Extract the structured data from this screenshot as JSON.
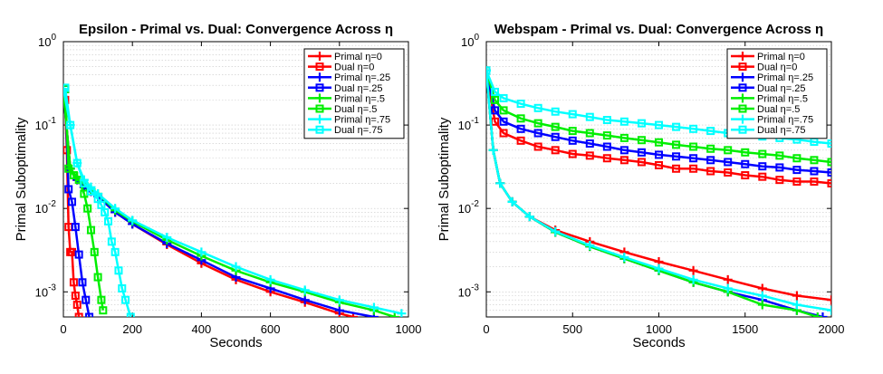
{
  "chart_data": [
    {
      "type": "line",
      "title": "Epsilon - Primal vs. Dual: Convergence Across η",
      "xlabel": "Seconds",
      "ylabel": "Primal Suboptimality",
      "xlim": [
        0,
        1000
      ],
      "ylim": [
        0.0005,
        1
      ],
      "yscale": "log",
      "xticks": [
        0,
        200,
        400,
        600,
        800,
        1000
      ],
      "xtick_labels": [
        "0",
        "200",
        "400",
        "600",
        "800",
        "1000"
      ],
      "yticks": [
        1,
        0.1,
        0.01,
        0.001
      ],
      "ytick_labels": [
        {
          "base": "10",
          "exp": "0"
        },
        {
          "base": "10",
          "exp": "-1"
        },
        {
          "base": "10",
          "exp": "-2"
        },
        {
          "base": "10",
          "exp": "-3"
        }
      ],
      "legend_position": "top-right",
      "series": [
        {
          "name": "Primal η=0",
          "color": "#ff0000",
          "marker": "plus",
          "x": [
            0,
            20,
            40,
            60,
            80,
            100,
            150,
            200,
            300,
            400,
            500,
            600,
            700,
            800,
            840
          ],
          "y": [
            0.25,
            0.03,
            0.022,
            0.018,
            0.016,
            0.014,
            0.009,
            0.0065,
            0.0037,
            0.0022,
            0.0014,
            0.001,
            0.00075,
            0.00055,
            0.0005
          ]
        },
        {
          "name": "Dual η=0",
          "color": "#ff0000",
          "marker": "square",
          "x": [
            5,
            10,
            15,
            20,
            25,
            30,
            35,
            40,
            45
          ],
          "y": [
            0.2,
            0.05,
            0.006,
            0.003,
            0.003,
            0.0013,
            0.0009,
            0.0007,
            0.0005
          ]
        },
        {
          "name": "Primal η=.25",
          "color": "#0000ff",
          "marker": "plus",
          "x": [
            0,
            20,
            40,
            60,
            80,
            100,
            150,
            200,
            300,
            400,
            500,
            600,
            700,
            800,
            900
          ],
          "y": [
            0.25,
            0.03,
            0.022,
            0.018,
            0.016,
            0.014,
            0.009,
            0.0065,
            0.0038,
            0.0024,
            0.0015,
            0.0011,
            0.0008,
            0.0006,
            0.0005
          ]
        },
        {
          "name": "Dual η=.25",
          "color": "#0000ff",
          "marker": "square",
          "x": [
            5,
            15,
            25,
            35,
            45,
            55,
            65,
            75
          ],
          "y": [
            0.27,
            0.017,
            0.012,
            0.006,
            0.0028,
            0.0013,
            0.0008,
            0.0005
          ]
        },
        {
          "name": "Primal η=.5",
          "color": "#00ee00",
          "marker": "plus",
          "x": [
            0,
            20,
            40,
            60,
            80,
            100,
            150,
            200,
            300,
            400,
            500,
            600,
            700,
            800,
            900,
            960
          ],
          "y": [
            0.26,
            0.03,
            0.024,
            0.02,
            0.017,
            0.015,
            0.0095,
            0.007,
            0.0042,
            0.0027,
            0.0018,
            0.0013,
            0.001,
            0.00075,
            0.0006,
            0.0005
          ]
        },
        {
          "name": "Dual η=.5",
          "color": "#00ee00",
          "marker": "square",
          "x": [
            5,
            15,
            30,
            45,
            60,
            70,
            80,
            90,
            100,
            110,
            115
          ],
          "y": [
            0.27,
            0.03,
            0.025,
            0.022,
            0.015,
            0.01,
            0.0055,
            0.003,
            0.0015,
            0.0008,
            0.0006
          ]
        },
        {
          "name": "Primal η=.75",
          "color": "#00ffff",
          "marker": "plus",
          "x": [
            0,
            20,
            40,
            60,
            80,
            100,
            150,
            200,
            300,
            400,
            500,
            600,
            700,
            800,
            900,
            980
          ],
          "y": [
            0.27,
            0.1,
            0.035,
            0.022,
            0.018,
            0.015,
            0.01,
            0.0072,
            0.0045,
            0.003,
            0.002,
            0.0014,
            0.00105,
            0.0008,
            0.00065,
            0.00055
          ]
        },
        {
          "name": "Dual η=.75",
          "color": "#00ffff",
          "marker": "square",
          "x": [
            5,
            20,
            40,
            60,
            80,
            100,
            110,
            120,
            130,
            140,
            150,
            160,
            170,
            180,
            195
          ],
          "y": [
            0.28,
            0.1,
            0.035,
            0.02,
            0.016,
            0.013,
            0.011,
            0.009,
            0.007,
            0.004,
            0.003,
            0.0018,
            0.0011,
            0.0008,
            0.0005
          ]
        }
      ]
    },
    {
      "type": "line",
      "title": "Webspam - Primal vs. Dual: Convergence Across η",
      "xlabel": "Seconds",
      "ylabel": "Primal Suboptimality",
      "xlim": [
        0,
        2000
      ],
      "ylim": [
        0.0005,
        1
      ],
      "yscale": "log",
      "xticks": [
        0,
        500,
        1000,
        1500,
        2000
      ],
      "xtick_labels": [
        "0",
        "500",
        "1000",
        "1500",
        "2000"
      ],
      "yticks": [
        1,
        0.1,
        0.01,
        0.001
      ],
      "ytick_labels": [
        {
          "base": "10",
          "exp": "0"
        },
        {
          "base": "10",
          "exp": "-1"
        },
        {
          "base": "10",
          "exp": "-2"
        },
        {
          "base": "10",
          "exp": "-3"
        }
      ],
      "legend_position": "top-right",
      "series": [
        {
          "name": "Primal η=0",
          "color": "#ff0000",
          "marker": "plus",
          "x": [
            0,
            40,
            80,
            150,
            250,
            400,
            600,
            800,
            1000,
            1200,
            1400,
            1600,
            1800,
            2000
          ],
          "y": [
            0.45,
            0.05,
            0.02,
            0.012,
            0.008,
            0.0055,
            0.004,
            0.003,
            0.0023,
            0.0018,
            0.0014,
            0.0011,
            0.0009,
            0.0008
          ]
        },
        {
          "name": "Dual η=0",
          "color": "#ff0000",
          "marker": "square",
          "x": [
            0,
            50,
            100,
            200,
            300,
            400,
            500,
            600,
            700,
            800,
            900,
            1000,
            1100,
            1200,
            1300,
            1400,
            1500,
            1600,
            1700,
            1800,
            1900,
            2000
          ],
          "y": [
            0.45,
            0.11,
            0.08,
            0.065,
            0.055,
            0.05,
            0.045,
            0.043,
            0.04,
            0.038,
            0.036,
            0.033,
            0.03,
            0.03,
            0.028,
            0.027,
            0.025,
            0.024,
            0.022,
            0.021,
            0.021,
            0.02
          ]
        },
        {
          "name": "Primal η=.25",
          "color": "#0000ff",
          "marker": "plus",
          "x": [
            0,
            40,
            80,
            150,
            250,
            400,
            600,
            800,
            1000,
            1200,
            1400,
            1600,
            1800,
            1950
          ],
          "y": [
            0.45,
            0.05,
            0.02,
            0.012,
            0.008,
            0.0052,
            0.0035,
            0.0025,
            0.0018,
            0.0013,
            0.001,
            0.0008,
            0.0006,
            0.0005
          ]
        },
        {
          "name": "Dual η=.25",
          "color": "#0000ff",
          "marker": "square",
          "x": [
            0,
            50,
            100,
            200,
            300,
            400,
            500,
            600,
            700,
            800,
            900,
            1000,
            1100,
            1200,
            1300,
            1400,
            1500,
            1600,
            1700,
            1800,
            1900,
            2000
          ],
          "y": [
            0.45,
            0.15,
            0.11,
            0.09,
            0.08,
            0.072,
            0.065,
            0.06,
            0.055,
            0.05,
            0.047,
            0.044,
            0.042,
            0.04,
            0.038,
            0.036,
            0.034,
            0.032,
            0.031,
            0.029,
            0.028,
            0.027
          ]
        },
        {
          "name": "Primal η=.5",
          "color": "#00ee00",
          "marker": "plus",
          "x": [
            0,
            40,
            80,
            150,
            250,
            400,
            600,
            800,
            1000,
            1200,
            1400,
            1600,
            1800,
            1920
          ],
          "y": [
            0.45,
            0.05,
            0.02,
            0.012,
            0.008,
            0.0052,
            0.0035,
            0.0025,
            0.0018,
            0.0013,
            0.001,
            0.0007,
            0.0006,
            0.0005
          ]
        },
        {
          "name": "Dual η=.5",
          "color": "#00ee00",
          "marker": "square",
          "x": [
            0,
            50,
            100,
            200,
            300,
            400,
            500,
            600,
            700,
            800,
            900,
            1000,
            1100,
            1200,
            1300,
            1400,
            1500,
            1600,
            1700,
            1800,
            1900,
            2000
          ],
          "y": [
            0.45,
            0.2,
            0.15,
            0.12,
            0.105,
            0.095,
            0.085,
            0.08,
            0.075,
            0.07,
            0.066,
            0.062,
            0.058,
            0.055,
            0.052,
            0.05,
            0.047,
            0.045,
            0.043,
            0.04,
            0.038,
            0.036
          ]
        },
        {
          "name": "Primal η=.75",
          "color": "#00ffff",
          "marker": "plus",
          "x": [
            0,
            40,
            80,
            150,
            250,
            400,
            600,
            800,
            1000,
            1200,
            1400,
            1600,
            1800,
            2000
          ],
          "y": [
            0.45,
            0.05,
            0.02,
            0.012,
            0.008,
            0.0053,
            0.0036,
            0.0026,
            0.0019,
            0.0014,
            0.0011,
            0.0009,
            0.0007,
            0.0006
          ]
        },
        {
          "name": "Dual η=.75",
          "color": "#00ffff",
          "marker": "square",
          "x": [
            0,
            50,
            100,
            200,
            300,
            400,
            500,
            600,
            700,
            800,
            900,
            1000,
            1100,
            1200,
            1300,
            1400,
            1500,
            1600,
            1700,
            1800,
            1900,
            2000
          ],
          "y": [
            0.45,
            0.25,
            0.21,
            0.18,
            0.16,
            0.145,
            0.135,
            0.125,
            0.115,
            0.11,
            0.105,
            0.1,
            0.095,
            0.09,
            0.085,
            0.08,
            0.077,
            0.073,
            0.07,
            0.067,
            0.063,
            0.06
          ]
        }
      ]
    }
  ]
}
